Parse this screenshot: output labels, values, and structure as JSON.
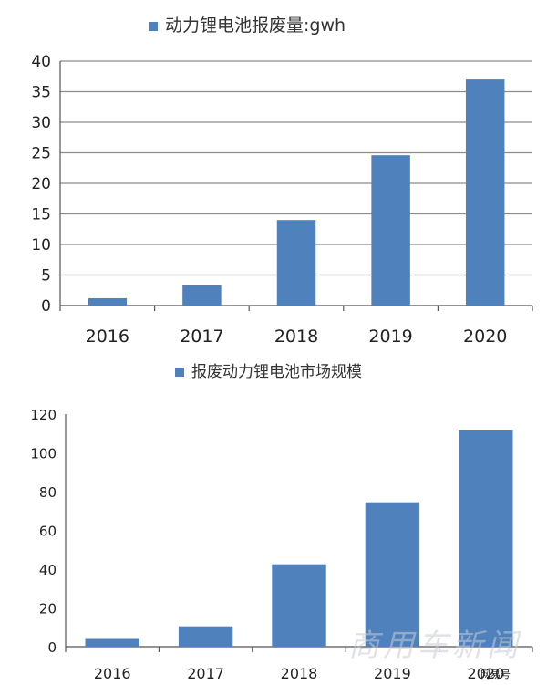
{
  "chart_data": [
    {
      "type": "bar",
      "title": "动力锂电池报废量:gwh",
      "categories": [
        "2016",
        "2017",
        "2018",
        "2019",
        "2020"
      ],
      "values": [
        1.2,
        3.3,
        14,
        24.6,
        37
      ],
      "ylim": [
        0,
        40
      ],
      "yticks": [
        0,
        5,
        10,
        15,
        20,
        25,
        30,
        35,
        40
      ],
      "grid": true,
      "legend": "top",
      "colors": {
        "bar": "#4f81bd",
        "grid": "#8c8c8c",
        "axis": "#555555"
      }
    },
    {
      "type": "bar",
      "title": "报废动力锂电池市场规模",
      "categories": [
        "2016",
        "2017",
        "2018",
        "2019",
        "2020"
      ],
      "values": [
        4,
        10.5,
        42.5,
        74.5,
        112
      ],
      "ylim": [
        0,
        120
      ],
      "yticks": [
        0,
        20,
        40,
        60,
        80,
        100,
        120
      ],
      "grid": false,
      "legend": "top",
      "colors": {
        "bar": "#4f81bd",
        "grid": "#8c8c8c",
        "axis": "#555555"
      }
    }
  ],
  "watermark": {
    "text": "商用车新闻",
    "sub": "网易号"
  }
}
